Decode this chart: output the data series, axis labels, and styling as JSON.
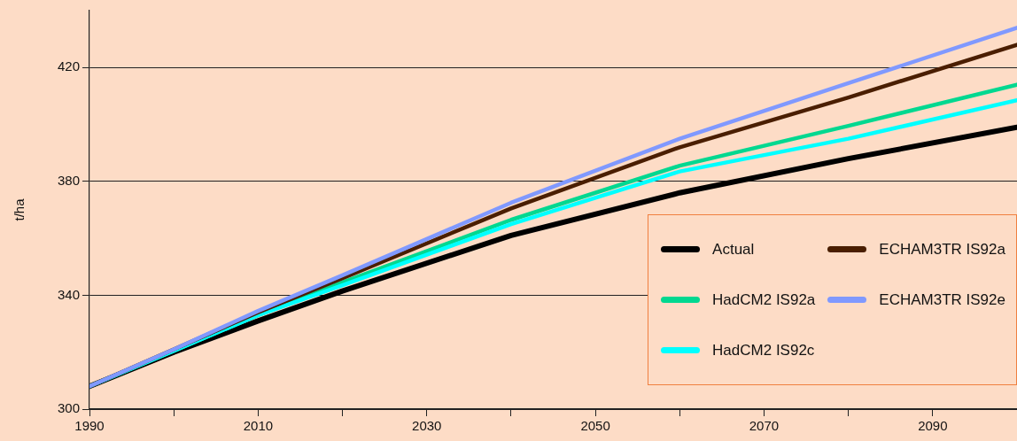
{
  "chart_data": {
    "type": "line",
    "ylabel": "t/ha",
    "x": [
      1990,
      2000,
      2010,
      2020,
      2040,
      2060,
      2080,
      2100
    ],
    "xlim": [
      1990,
      2100
    ],
    "xticks": [
      1990,
      {
        "value": 2000,
        "label": null
      },
      2010,
      {
        "value": 2020,
        "label": null
      },
      2030,
      {
        "value": 2040,
        "label": null
      },
      2050,
      {
        "value": 2060,
        "label": null
      },
      2070,
      {
        "value": 2080,
        "label": null
      },
      2090
    ],
    "ylim": [
      300,
      440
    ],
    "yticks": [
      300,
      340,
      380,
      420
    ],
    "grid": "y",
    "legend": "bottom right",
    "marker": "none",
    "line_style": "solid",
    "series": [
      {
        "name": "Actual",
        "color": "#000000",
        "values": [
          308,
          320,
          331,
          341.5,
          361,
          376,
          388,
          399
        ]
      },
      {
        "name": "HadCM2 IS92a",
        "color": "#00d890",
        "values": [
          308,
          320.5,
          333,
          344.5,
          366.5,
          385.5,
          399.5,
          414
        ]
      },
      {
        "name": "HadCM2 IS92c",
        "color": "#00ffff",
        "values": [
          308,
          320.5,
          333,
          343.5,
          365,
          383.5,
          395,
          408.5
        ]
      },
      {
        "name": "ECHAM3TR IS92a",
        "color": "#4a1e00",
        "values": [
          308,
          321,
          334,
          346,
          370.5,
          392,
          409.5,
          428
        ]
      },
      {
        "name": "ECHAM3TR IS92e",
        "color": "#8099ff",
        "values": [
          308,
          321,
          334.5,
          347,
          372.5,
          395,
          414.5,
          434
        ]
      }
    ]
  }
}
